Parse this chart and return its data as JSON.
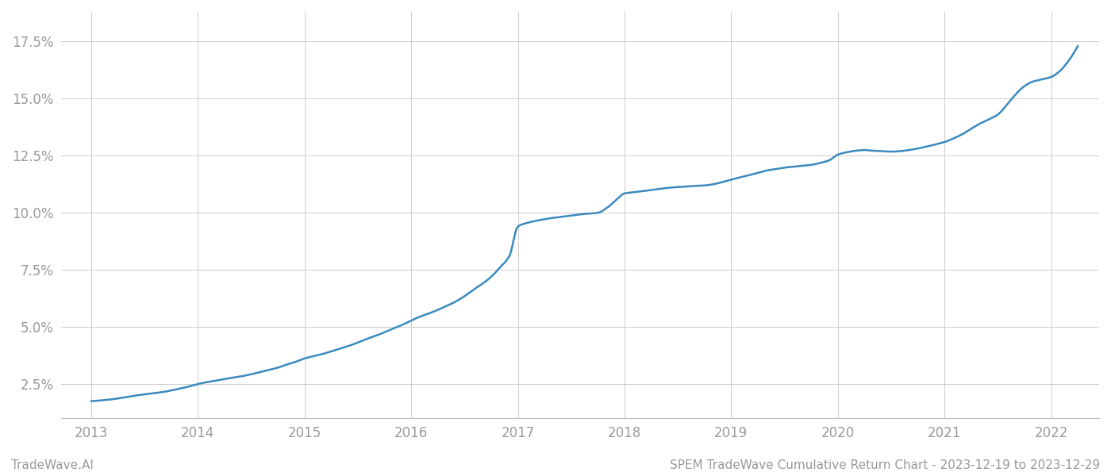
{
  "title": "SPEM TradeWave Cumulative Return Chart - 2023-12-19 to 2023-12-29",
  "watermark_left": "TradeWave.AI",
  "line_color": "#3a8abf",
  "background_color": "#ffffff",
  "grid_color": "#cccccc",
  "x_values": [
    2013.0,
    2013.08,
    2013.17,
    2013.25,
    2013.33,
    2013.42,
    2013.5,
    2013.58,
    2013.67,
    2013.75,
    2013.83,
    2013.92,
    2014.0,
    2014.08,
    2014.17,
    2014.25,
    2014.33,
    2014.42,
    2014.5,
    2014.58,
    2014.67,
    2014.75,
    2014.83,
    2014.92,
    2015.0,
    2015.08,
    2015.17,
    2015.25,
    2015.33,
    2015.42,
    2015.5,
    2015.58,
    2015.67,
    2015.75,
    2015.83,
    2015.92,
    2016.0,
    2016.08,
    2016.17,
    2016.25,
    2016.33,
    2016.42,
    2016.5,
    2016.58,
    2016.67,
    2016.75,
    2016.83,
    2016.92,
    2017.0,
    2017.08,
    2017.17,
    2017.25,
    2017.33,
    2017.42,
    2017.5,
    2017.58,
    2017.67,
    2017.75,
    2017.83,
    2017.92,
    2018.0,
    2018.08,
    2018.17,
    2018.25,
    2018.33,
    2018.42,
    2018.5,
    2018.58,
    2018.67,
    2018.75,
    2018.83,
    2018.92,
    2019.0,
    2019.08,
    2019.17,
    2019.25,
    2019.33,
    2019.42,
    2019.5,
    2019.58,
    2019.67,
    2019.75,
    2019.83,
    2019.92,
    2020.0,
    2020.08,
    2020.17,
    2020.25,
    2020.33,
    2020.42,
    2020.5,
    2020.58,
    2020.67,
    2020.75,
    2020.83,
    2020.92,
    2021.0,
    2021.08,
    2021.17,
    2021.25,
    2021.33,
    2021.42,
    2021.5,
    2021.58,
    2021.67,
    2021.75,
    2021.83,
    2021.92,
    2022.0,
    2022.08,
    2022.17,
    2022.25
  ],
  "y_values": [
    1.75,
    1.78,
    1.82,
    1.87,
    1.93,
    2.0,
    2.05,
    2.1,
    2.15,
    2.22,
    2.3,
    2.4,
    2.5,
    2.58,
    2.65,
    2.72,
    2.78,
    2.85,
    2.93,
    3.02,
    3.12,
    3.22,
    3.35,
    3.48,
    3.62,
    3.72,
    3.82,
    3.93,
    4.05,
    4.18,
    4.32,
    4.47,
    4.62,
    4.77,
    4.93,
    5.1,
    5.28,
    5.45,
    5.6,
    5.75,
    5.92,
    6.12,
    6.35,
    6.62,
    6.9,
    7.2,
    7.6,
    8.1,
    9.4,
    9.55,
    9.65,
    9.72,
    9.78,
    9.83,
    9.88,
    9.93,
    9.97,
    10.0,
    10.2,
    10.55,
    10.85,
    10.9,
    10.95,
    11.0,
    11.05,
    11.1,
    11.13,
    11.15,
    11.18,
    11.2,
    11.25,
    11.35,
    11.45,
    11.55,
    11.65,
    11.75,
    11.85,
    11.92,
    11.98,
    12.02,
    12.06,
    12.1,
    12.18,
    12.3,
    12.55,
    12.65,
    12.72,
    12.75,
    12.72,
    12.7,
    12.68,
    12.7,
    12.75,
    12.82,
    12.9,
    13.0,
    13.1,
    13.25,
    13.45,
    13.68,
    13.9,
    14.1,
    14.3,
    14.7,
    15.2,
    15.55,
    15.75,
    15.85,
    15.95,
    16.2,
    16.7,
    17.3
  ],
  "yticks": [
    2.5,
    5.0,
    7.5,
    10.0,
    12.5,
    15.0,
    17.5
  ],
  "xticks": [
    2013,
    2014,
    2015,
    2016,
    2017,
    2018,
    2019,
    2020,
    2021,
    2022
  ],
  "ylim": [
    1.0,
    18.8
  ],
  "xlim": [
    2012.72,
    2022.45
  ],
  "tick_label_color": "#999999",
  "tick_fontsize": 12,
  "footer_fontsize": 11,
  "line_width": 1.8
}
